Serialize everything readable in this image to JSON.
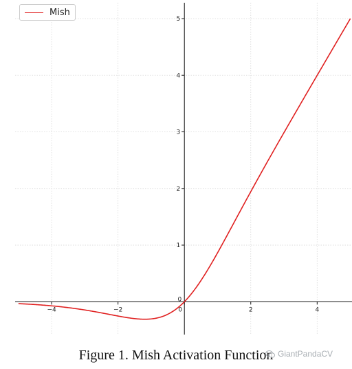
{
  "chart_data": {
    "type": "line",
    "title": "",
    "xlabel": "",
    "ylabel": "",
    "xlim": [
      -5.1,
      5.05
    ],
    "ylim": [
      -0.58,
      5.28
    ],
    "xticks": [
      -4,
      -2,
      0,
      2,
      4
    ],
    "xtick_labels": [
      "−4",
      "−2",
      "0",
      "2",
      "4"
    ],
    "yticks": [
      0,
      1,
      2,
      3,
      4,
      5
    ],
    "ytick_labels": [
      "0",
      "1",
      "2",
      "3",
      "4",
      "5"
    ],
    "grid": true,
    "legend_position": "top-left",
    "series": [
      {
        "name": "Mish",
        "color": "#e02020",
        "function": "x * tanh(ln(1 + e^x))",
        "x_range": [
          -5,
          5
        ],
        "x": [
          -5,
          -4,
          -3,
          -2,
          -1.5,
          -1.2,
          -1,
          -0.5,
          0,
          0.5,
          1,
          1.5,
          2,
          3,
          4,
          5
        ],
        "y": [
          -0.034,
          -0.073,
          -0.146,
          -0.252,
          -0.294,
          -0.309,
          -0.303,
          -0.222,
          0.0,
          0.375,
          0.865,
          1.404,
          1.944,
          2.987,
          3.997,
          4.999
        ]
      }
    ]
  },
  "caption": "Figure 1.  Mish Activation Function",
  "watermark": "GiantPandaCV"
}
